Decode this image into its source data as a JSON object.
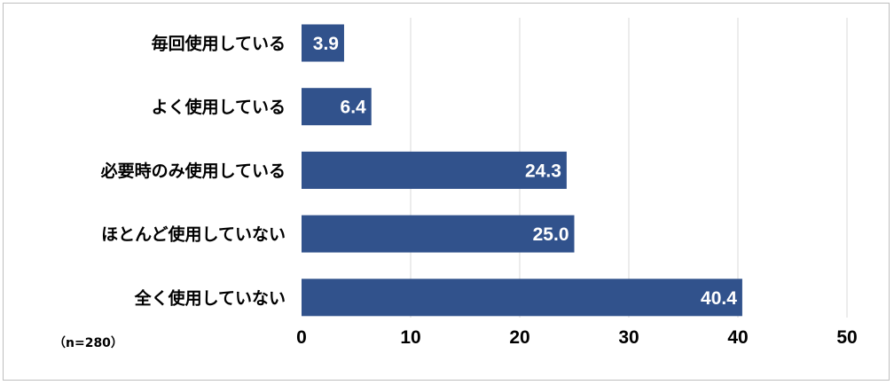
{
  "chart_data": {
    "type": "bar",
    "orientation": "horizontal",
    "categories": [
      "毎回使用している",
      "よく使用している",
      "必要時のみ使用している",
      "ほとんど使用していない",
      "全く使用していない"
    ],
    "values": [
      3.9,
      6.4,
      24.3,
      25.0,
      40.4
    ],
    "value_labels": [
      "3.9",
      "6.4",
      "24.3",
      "25.0",
      "40.4"
    ],
    "xlim": [
      0,
      50
    ],
    "xticks": [
      "0",
      "10",
      "20",
      "30",
      "40",
      "50"
    ],
    "grid": "vertical",
    "bar_color": "#31528c",
    "label_color": "#ffffff",
    "note": "（n=280）"
  }
}
